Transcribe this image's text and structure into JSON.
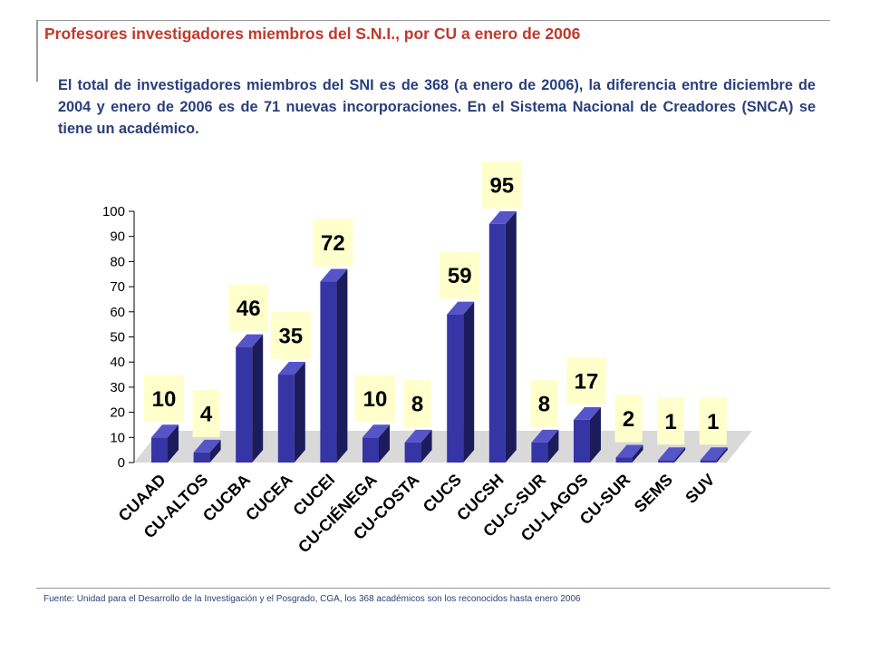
{
  "page": {
    "title": "Profesores investigadores miembros del S.N.I., por CU a enero de 2006",
    "description": "El total de investigadores miembros del SNI es de 368 (a enero de 2006), la diferencia entre diciembre de 2004 y enero de 2006 es de 71  nuevas incorporaciones. En el Sistema Nacional de Creadores (SNCA) se tiene un académico.",
    "source": "Fuente: Unidad para el Desarrollo de la Investigación y el Posgrado, CGA, los 368 académicos son los reconocidos hasta enero 2006"
  },
  "colors": {
    "title": "#c0392b",
    "text": "#2a3f7c",
    "bar_front": "#3535a6",
    "bar_side": "#1c1c5c",
    "label_bg": "#ffffcc",
    "floor": "#d9d9d9"
  },
  "chart_data": {
    "type": "bar",
    "title": "",
    "xlabel": "",
    "ylabel": "",
    "ylim": [
      0,
      100
    ],
    "yticks": [
      0,
      10,
      20,
      30,
      40,
      50,
      60,
      70,
      80,
      90,
      100
    ],
    "grid": false,
    "legend": "none",
    "categories": [
      "CUAAD",
      "CU-ALTOS",
      "CUCBA",
      "CUCEA",
      "CUCEI",
      "CU-CIÉNEGA",
      "CU-COSTA",
      "CUCS",
      "CUCSH",
      "CU-C-SUR",
      "CU-LAGOS",
      "CU-SUR",
      "SEMS",
      "SUV"
    ],
    "values": [
      10,
      4,
      46,
      35,
      72,
      10,
      8,
      59,
      95,
      8,
      17,
      2,
      1,
      1
    ]
  }
}
